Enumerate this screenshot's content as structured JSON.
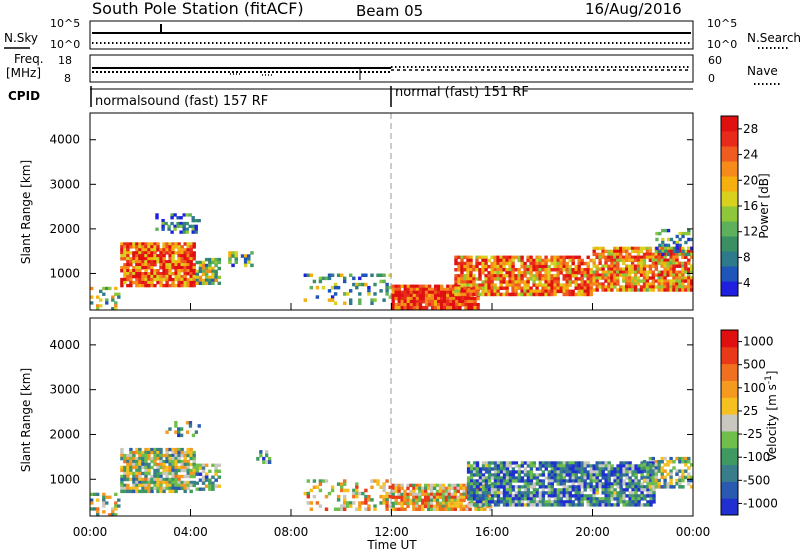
{
  "header": {
    "title": "South Pole Station (fitACF)",
    "beam": "Beam 05",
    "date": "16/Aug/2016"
  },
  "param_strips": {
    "nsky_label": "N.Sky",
    "nsearch_label": "N.Search",
    "exp_ticks_left": [
      "10^5",
      "10^0"
    ],
    "exp_ticks_right": [
      "10^5",
      "10^0"
    ],
    "freq_label_1": "Freq.",
    "freq_label_2": "[MHz]",
    "freq_ticks": [
      "18",
      "8"
    ],
    "nave_label": "Nave",
    "nave_ticks": [
      "60",
      "0"
    ],
    "cpid_label": "CPID",
    "cpid_segments": [
      "normalsound (fast) 157 RF",
      "normal (fast) 151 RF"
    ]
  },
  "chart_data": [
    {
      "type": "heatmap",
      "title": "",
      "ylabel": "Slant Range [km]",
      "xlabel": "",
      "y_ticks": [
        "4000",
        "3000",
        "2000",
        "1000"
      ],
      "ylim": [
        180,
        4600
      ],
      "x_ticks": [
        "00:00",
        "04:00",
        "08:00",
        "12:00",
        "16:00",
        "20:00",
        "00:00"
      ],
      "xlim_hours": [
        0,
        24
      ],
      "colorbar": {
        "label": "Power [dB]",
        "ticks": [
          "28",
          "24",
          "20",
          "16",
          "12",
          "8",
          "4"
        ],
        "colors": [
          "#1f1fe0",
          "#1f55b8",
          "#2d7a8c",
          "#3a8f63",
          "#5fb05a",
          "#8ec83a",
          "#d8d21e",
          "#f5b010",
          "#f68a1a",
          "#f05b20",
          "#e82a1a",
          "#e01010"
        ]
      }
    },
    {
      "type": "heatmap",
      "title": "",
      "ylabel": "Slant Range [km]",
      "xlabel": "Time UT",
      "y_ticks": [
        "4000",
        "3000",
        "2000",
        "1000"
      ],
      "ylim": [
        180,
        4600
      ],
      "x_ticks": [
        "00:00",
        "04:00",
        "08:00",
        "12:00",
        "16:00",
        "20:00",
        "00:00"
      ],
      "xlim_hours": [
        0,
        24
      ],
      "colorbar": {
        "label": "Velocity [m s^-1]",
        "ticks": [
          "1000",
          "500",
          "100",
          "25",
          "-25",
          "-100",
          "-500",
          "-1000"
        ],
        "colors": [
          "#1f2fd0",
          "#2a5ab0",
          "#3a7d8a",
          "#3f9a62",
          "#6fbf4a",
          "#c8c8c0",
          "#f5c020",
          "#f59a20",
          "#f07020",
          "#e83a18",
          "#e01010"
        ]
      }
    }
  ]
}
